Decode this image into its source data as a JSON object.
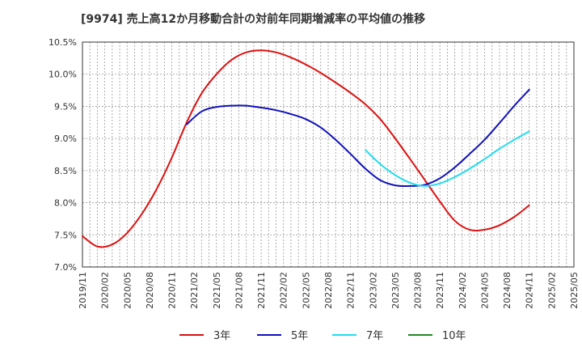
{
  "chart_data": {
    "type": "line",
    "title": "[9974]  売上高12か月移動合計の対前年同期増減率の平均値の推移",
    "xlabel": "",
    "ylabel": "",
    "ylim": [
      7.0,
      10.5
    ],
    "y_ticks": [
      "7.0%",
      "7.5%",
      "8.0%",
      "8.5%",
      "9.0%",
      "9.5%",
      "10.0%",
      "10.5%"
    ],
    "x_ticks": [
      "2019/11",
      "2020/02",
      "2020/05",
      "2020/08",
      "2020/11",
      "2021/02",
      "2021/05",
      "2021/08",
      "2021/11",
      "2022/02",
      "2022/05",
      "2022/08",
      "2022/11",
      "2023/02",
      "2023/05",
      "2023/08",
      "2023/11",
      "2024/02",
      "2024/05",
      "2024/08",
      "2024/11",
      "2025/02",
      "2025/05"
    ],
    "grid": true,
    "legend_position": "bottom",
    "series": [
      {
        "name": "3年",
        "color": "#dd1111",
        "x": [
          "2019/11",
          "2020/01",
          "2020/03",
          "2020/05",
          "2020/07",
          "2020/09",
          "2020/11",
          "2021/01",
          "2021/03",
          "2021/05",
          "2021/07",
          "2021/09",
          "2021/11",
          "2022/01",
          "2022/03",
          "2022/05",
          "2022/07",
          "2022/09",
          "2022/11",
          "2023/01",
          "2023/03",
          "2023/05",
          "2023/07",
          "2023/09",
          "2023/11",
          "2024/01",
          "2024/03",
          "2024/05",
          "2024/07",
          "2024/09",
          "2024/11"
        ],
        "values": [
          7.48,
          7.32,
          7.35,
          7.53,
          7.83,
          8.22,
          8.7,
          9.25,
          9.7,
          10.0,
          10.22,
          10.34,
          10.37,
          10.34,
          10.26,
          10.15,
          10.02,
          9.87,
          9.71,
          9.53,
          9.3,
          9.0,
          8.68,
          8.35,
          8.02,
          7.72,
          7.58,
          7.58,
          7.65,
          7.78,
          7.96
        ]
      },
      {
        "name": "5年",
        "color": "#1111bb",
        "x": [
          "2021/01",
          "2021/03",
          "2021/05",
          "2021/07",
          "2021/09",
          "2021/11",
          "2022/01",
          "2022/03",
          "2022/05",
          "2022/07",
          "2022/09",
          "2022/11",
          "2023/01",
          "2023/03",
          "2023/05",
          "2023/07",
          "2023/09",
          "2023/11",
          "2024/01",
          "2024/03",
          "2024/05",
          "2024/07",
          "2024/09",
          "2024/11"
        ],
        "values": [
          9.22,
          9.42,
          9.49,
          9.51,
          9.51,
          9.48,
          9.44,
          9.38,
          9.3,
          9.17,
          8.98,
          8.76,
          8.53,
          8.35,
          8.27,
          8.26,
          8.28,
          8.38,
          8.55,
          8.76,
          8.98,
          9.24,
          9.51,
          9.76
        ]
      },
      {
        "name": "7年",
        "color": "#22ddee",
        "x": [
          "2023/01",
          "2023/03",
          "2023/05",
          "2023/07",
          "2023/09",
          "2023/11",
          "2024/01",
          "2024/03",
          "2024/05",
          "2024/07",
          "2024/09",
          "2024/11"
        ],
        "values": [
          8.82,
          8.6,
          8.43,
          8.31,
          8.26,
          8.3,
          8.4,
          8.53,
          8.68,
          8.84,
          8.98,
          9.11
        ]
      },
      {
        "name": "10年",
        "color": "#228822",
        "x": [],
        "values": []
      }
    ]
  }
}
